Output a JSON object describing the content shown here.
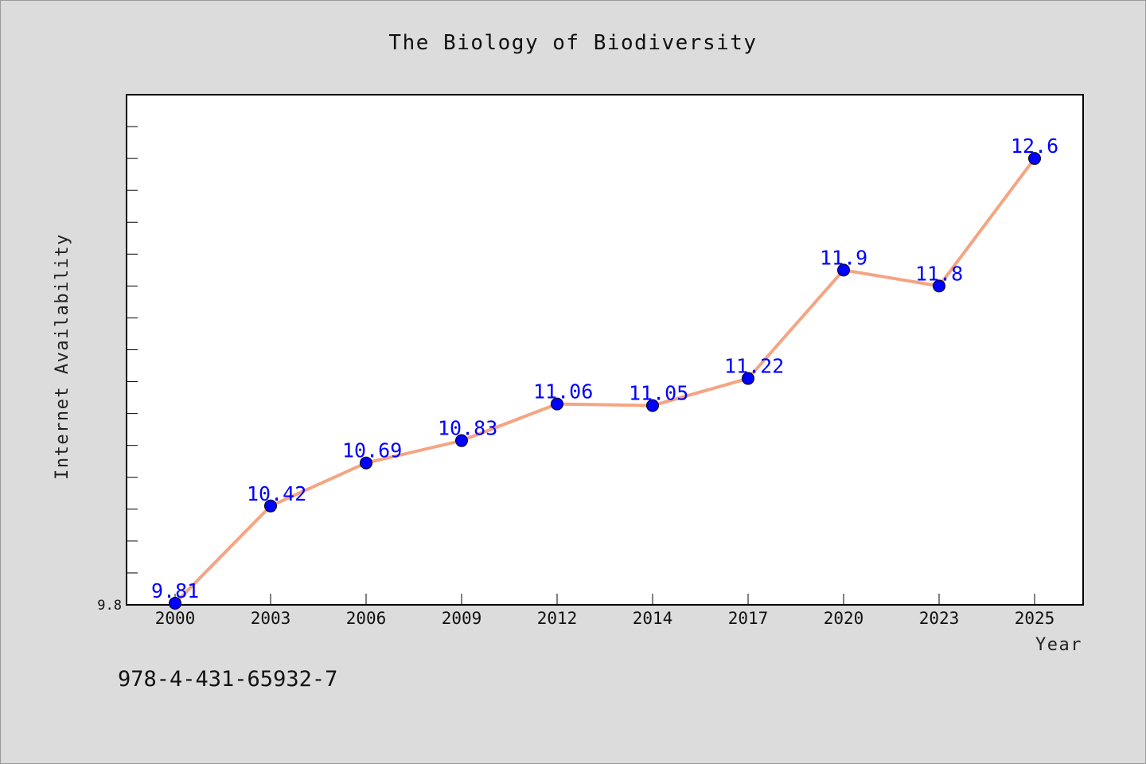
{
  "chart_data": {
    "type": "line",
    "title": "The Biology of Biodiversity",
    "xlabel": "Year",
    "ylabel": "Internet Availability",
    "categories": [
      "2000",
      "2003",
      "2006",
      "2009",
      "2012",
      "2014",
      "2017",
      "2020",
      "2023",
      "2025"
    ],
    "series": [
      {
        "values": [
          9.81,
          10.42,
          10.69,
          10.83,
          11.06,
          11.05,
          11.22,
          11.9,
          11.8,
          12.6
        ],
        "labels": [
          "9.81",
          "10.42",
          "10.69",
          "10.83",
          "11.06",
          "11.05",
          "11.22",
          "11.9",
          "11.8",
          "12.6"
        ]
      }
    ],
    "ylim": [
      9.8,
      13.0
    ],
    "yticks_labeled": [
      "9.8"
    ],
    "grid": false,
    "line_color": "#f4a582",
    "marker_color": "#0000ff",
    "label_color": "#0000ff"
  },
  "footer": {
    "isbn": "978-4-431-65932-7"
  }
}
